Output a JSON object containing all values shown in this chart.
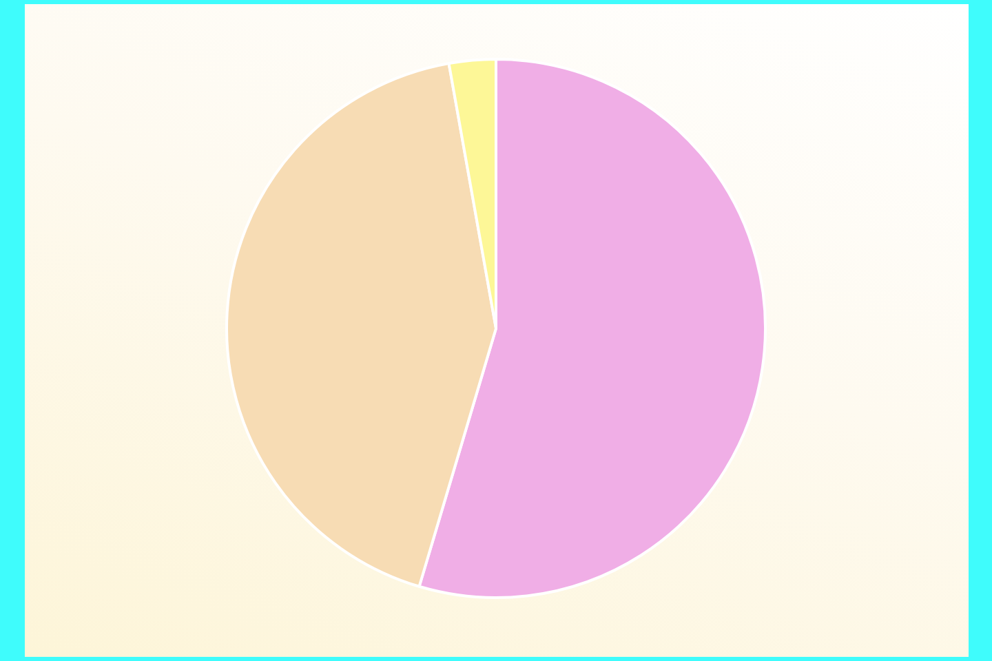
{
  "chart_data": {
    "type": "pie",
    "categories": [
      null,
      null,
      null
    ],
    "values": [
      54.6,
      42.6,
      2.8
    ],
    "colors": [
      "#f0aee6",
      "#f7dcb4",
      "#fdf797"
    ],
    "legend": false
  }
}
